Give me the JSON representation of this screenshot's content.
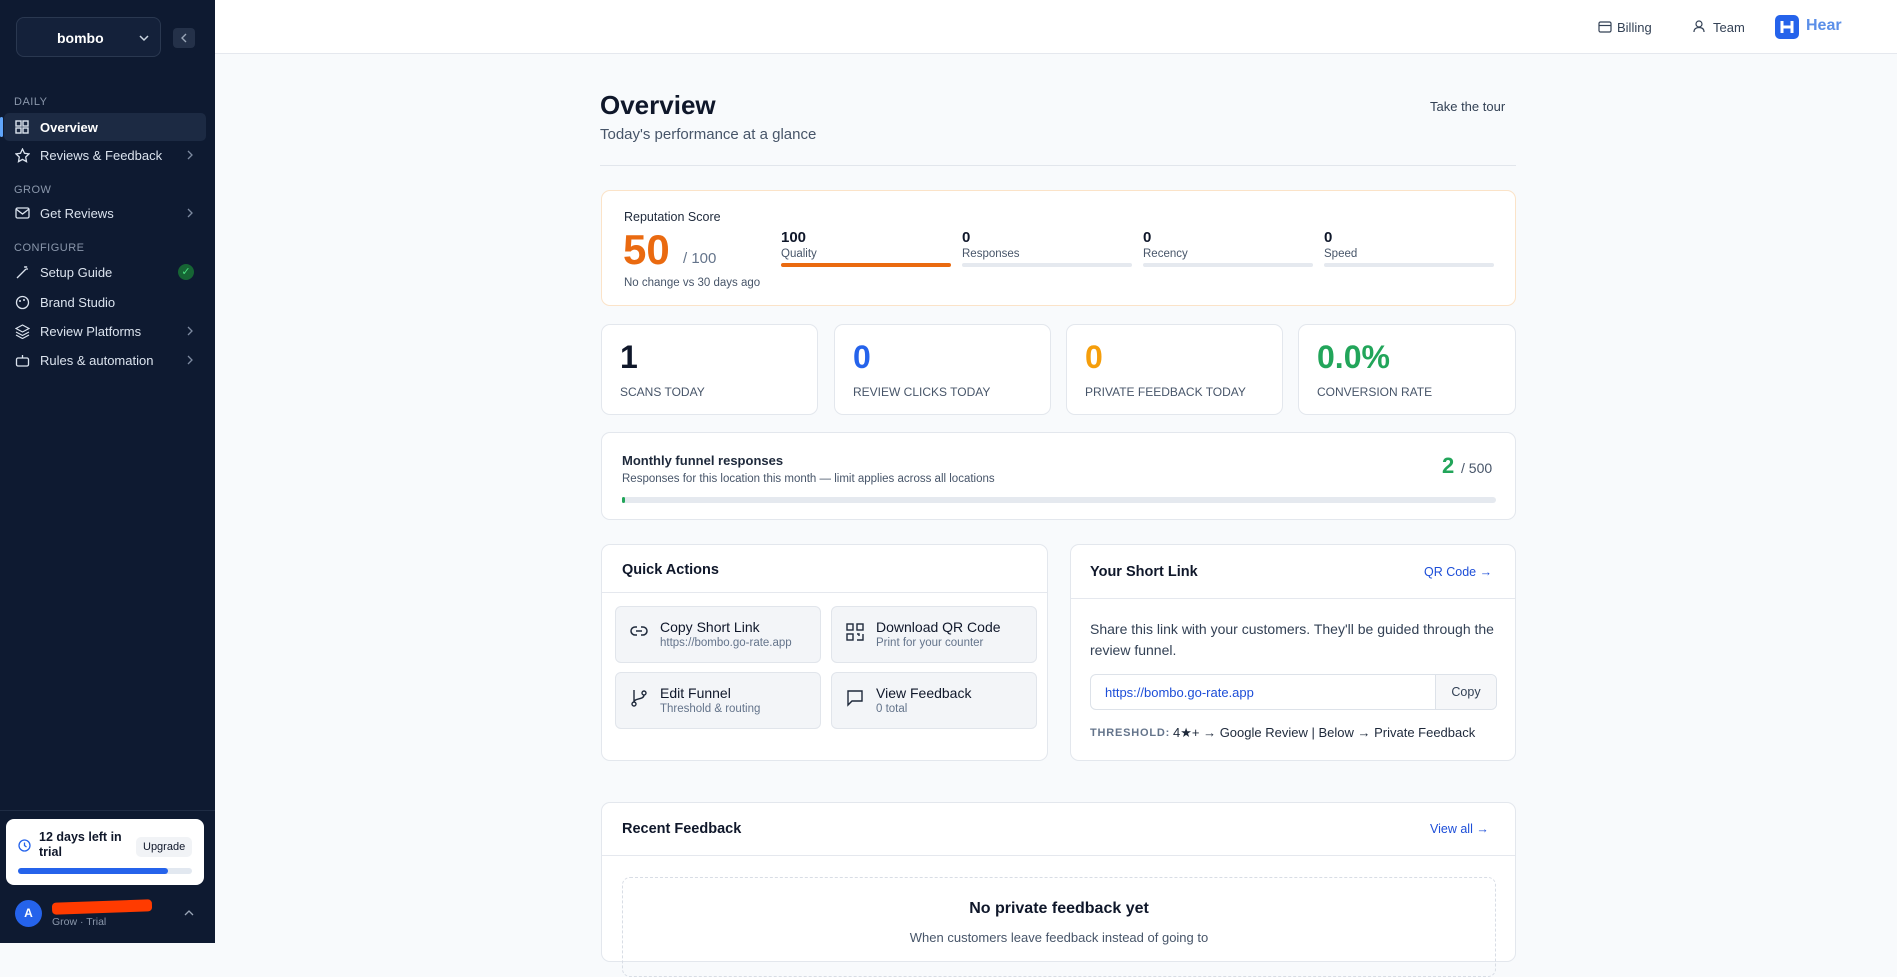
{
  "sidebar": {
    "workspace": "bombo",
    "sections": [
      {
        "title": "DAILY",
        "items": [
          "Overview",
          "Reviews & Feedback"
        ]
      },
      {
        "title": "GROW",
        "items": [
          "Get Reviews"
        ]
      },
      {
        "title": "CONFIGURE",
        "items": [
          "Setup Guide",
          "Brand Studio",
          "Review Platforms",
          "Rules & automation"
        ]
      }
    ],
    "trial": {
      "text": "12 days left in trial",
      "button": "Upgrade"
    },
    "user": {
      "avatar": "A",
      "plan": "Grow · Trial"
    }
  },
  "topbar": {
    "billing": "Billing",
    "team": "Team",
    "brand": "Hear"
  },
  "header": {
    "title": "Overview",
    "subtitle": "Today's performance at a glance",
    "tour": "Take the tour"
  },
  "reputation": {
    "label": "Reputation Score",
    "score": 50,
    "max_label": "/ 100",
    "change": "No change vs 30 days ago",
    "metrics": [
      {
        "value": 100,
        "label": "Quality"
      },
      {
        "value": 0,
        "label": "Responses"
      },
      {
        "value": 0,
        "label": "Recency"
      },
      {
        "value": 0,
        "label": "Speed"
      }
    ]
  },
  "stats": [
    {
      "value": 1,
      "label": "SCANS TODAY"
    },
    {
      "value": 0,
      "label": "REVIEW CLICKS TODAY"
    },
    {
      "value": 0,
      "label": "PRIVATE FEEDBACK TODAY"
    },
    {
      "value": "0.0%",
      "label": "CONVERSION RATE"
    }
  ],
  "funnel": {
    "title": "Monthly funnel responses",
    "description": "Responses for this location this month — limit applies across all locations",
    "count": 2,
    "limit_label": "/ 500"
  },
  "quick_actions": {
    "title": "Quick Actions",
    "actions": [
      {
        "title": "Copy Short Link",
        "subtitle": "https://bombo.go-rate.app"
      },
      {
        "title": "Download QR Code",
        "subtitle": "Print for your counter"
      },
      {
        "title": "Edit Funnel",
        "subtitle": "Threshold & routing"
      },
      {
        "title": "View Feedback",
        "subtitle": "0 total"
      }
    ]
  },
  "short_link": {
    "title": "Your Short Link",
    "link": "QR Code →",
    "description": "Share this link with your customers. They'll be guided through the review funnel.",
    "url": "https://bombo.go-rate.app",
    "copy": "Copy",
    "threshold_label": "THRESHOLD:",
    "threshold": "4★+ → Google Review | Below → Private Feedback"
  },
  "recent_feedback": {
    "title": "Recent Feedback",
    "link": "View all →",
    "empty_title": "No private feedback yet",
    "empty_text": "When customers leave feedback instead of going to"
  }
}
